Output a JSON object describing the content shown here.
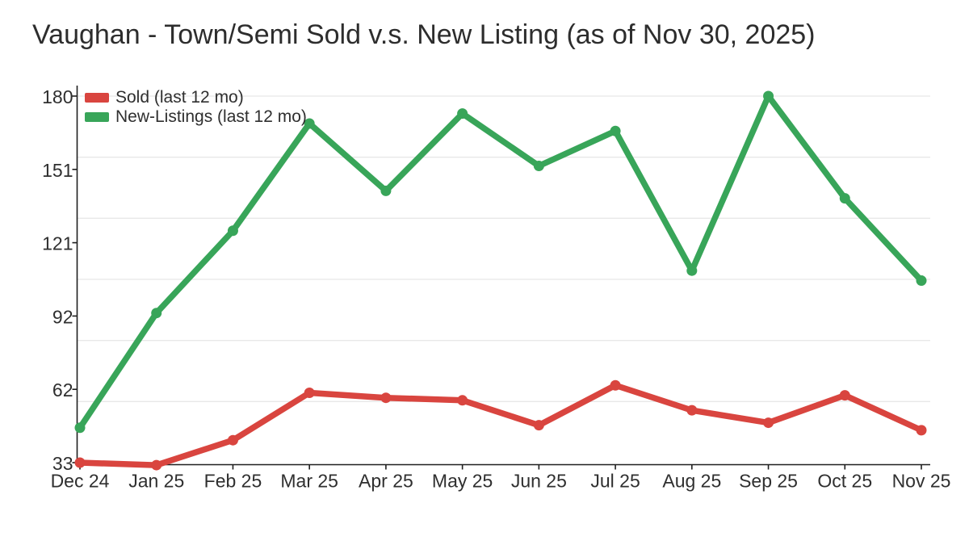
{
  "page": {
    "background_color": "#ffffff"
  },
  "chart_data": {
    "type": "line",
    "title": "Vaughan - Town/Semi Sold v.s. New Listing (as of Nov 30, 2025)",
    "x_categories": [
      "Dec 24",
      "Jan 25",
      "Feb 25",
      "Mar 25",
      "Apr 25",
      "May 25",
      "Jun 25",
      "Jul 25",
      "Aug 25",
      "Sep 25",
      "Oct 25",
      "Nov 25"
    ],
    "y_tick_labels": [
      "33",
      "62",
      "92",
      "121",
      "151",
      "180"
    ],
    "y_range": [
      33,
      180
    ],
    "gridline_divisions": 6,
    "grid": "horizontal",
    "legend_position": "top-left-inside",
    "xlabel": "",
    "ylabel": "",
    "series": [
      {
        "name": "Sold (last 12 mo)",
        "color": "#d9453f",
        "marker": "circle",
        "values": [
          33,
          32,
          42,
          61,
          59,
          58,
          48,
          64,
          54,
          49,
          60,
          46
        ]
      },
      {
        "name": "New-Listings (last 12 mo)",
        "color": "#38a559",
        "marker": "circle",
        "values": [
          47,
          93,
          126,
          169,
          142,
          173,
          152,
          166,
          110,
          180,
          139,
          106
        ]
      }
    ],
    "colors": {
      "axis": "#1f1f1f",
      "gridline": "#e8e8e8",
      "text": "#2f2f2f",
      "title": "#2d2d2d"
    }
  }
}
